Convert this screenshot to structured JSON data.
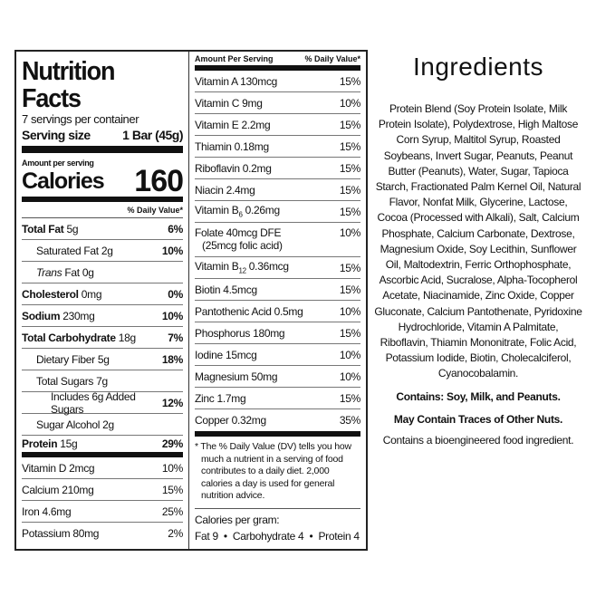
{
  "nutrition": {
    "title": "Nutrition Facts",
    "servings": "7 servings per container",
    "serving_size_label": "Serving size",
    "serving_size_value": "1 Bar (45g)",
    "amount_per_serving": "Amount per serving",
    "calories_label": "Calories",
    "calories_value": "160",
    "dv_header": "% Daily Value*",
    "left_rows": [
      {
        "name": "Total Fat",
        "amount": "5g",
        "dv": "6%",
        "bold": true,
        "indent": 0
      },
      {
        "name": "Saturated Fat 2g",
        "amount": "",
        "dv": "10%",
        "indent": 1
      },
      {
        "name": "Trans",
        "amount": "Fat 0g",
        "dv": "",
        "indent": 1,
        "italic": true
      },
      {
        "name": "Cholesterol",
        "amount": "0mg",
        "dv": "0%",
        "bold": true,
        "indent": 0
      },
      {
        "name": "Sodium",
        "amount": "230mg",
        "dv": "10%",
        "bold": true,
        "indent": 0
      },
      {
        "name": "Total Carbohydrate",
        "amount": "18g",
        "dv": "7%",
        "bold": true,
        "indent": 0
      },
      {
        "name": "Dietary Fiber 5g",
        "amount": "",
        "dv": "18%",
        "indent": 1
      },
      {
        "name": "Total Sugars 7g",
        "amount": "",
        "dv": "",
        "indent": 1
      },
      {
        "name": "Includes 6g Added Sugars",
        "amount": "",
        "dv": "12%",
        "indent": 2
      },
      {
        "name": "Sugar Alcohol 2g",
        "amount": "",
        "dv": "",
        "indent": 1
      },
      {
        "name": "Protein",
        "amount": "15g",
        "dv": "29%",
        "bold": true,
        "indent": 0,
        "thick": true
      },
      {
        "name": "Vitamin D 2mcg",
        "amount": "",
        "dv": "10%",
        "indent": 0,
        "plain": true
      },
      {
        "name": "Calcium 210mg",
        "amount": "",
        "dv": "15%",
        "indent": 0,
        "plain": true
      },
      {
        "name": "Iron 4.6mg",
        "amount": "",
        "dv": "25%",
        "indent": 0,
        "plain": true
      },
      {
        "name": "Potassium 80mg",
        "amount": "",
        "dv": "2%",
        "indent": 0,
        "plain": true
      }
    ],
    "right_header_left": "Amount Per Serving",
    "right_header_right": "% Daily Value*",
    "right_rows": [
      {
        "name": "Vitamin A 130mcg",
        "dv": "15%"
      },
      {
        "name": "Vitamin C 9mg",
        "dv": "10%"
      },
      {
        "name": "Vitamin E 2.2mg",
        "dv": "15%"
      },
      {
        "name": "Thiamin 0.18mg",
        "dv": "15%"
      },
      {
        "name": "Riboflavin 0.2mg",
        "dv": "15%"
      },
      {
        "name": "Niacin 2.4mg",
        "dv": "15%"
      },
      {
        "name": "Vitamin B",
        "sub": "6",
        "amount": " 0.26mg",
        "dv": "15%"
      },
      {
        "name": "Folate 40mcg DFE",
        "line2": "(25mcg folic acid)",
        "dv": "10%"
      },
      {
        "name": "Vitamin B",
        "sub": "12",
        "amount": " 0.36mcg",
        "dv": "15%"
      },
      {
        "name": "Biotin 4.5mcg",
        "dv": "15%"
      },
      {
        "name": "Pantothenic Acid 0.5mg",
        "dv": "10%"
      },
      {
        "name": "Phosphorus 180mg",
        "dv": "15%"
      },
      {
        "name": "Iodine 15mcg",
        "dv": "10%"
      },
      {
        "name": "Magnesium 50mg",
        "dv": "10%"
      },
      {
        "name": "Zinc 1.7mg",
        "dv": "15%"
      },
      {
        "name": "Copper 0.32mg",
        "dv": "35%"
      }
    ],
    "footnote": "* The % Daily Value (DV) tells you how much a nutrient in a serving of food contributes to a daily diet. 2,000 calories a day is used for general nutrition advice.",
    "calories_per_gram_label": "Calories per gram:",
    "calories_per_gram": "Fat 9  •  Carbohydrate 4  •  Protein 4"
  },
  "ingredients": {
    "title": "Ingredients",
    "text": "Protein Blend (Soy Protein Isolate, Milk Protein Isolate), Polydextrose, High Maltose Corn Syrup, Maltitol Syrup, Roasted Soybeans, Invert Sugar, Peanuts, Peanut Butter (Peanuts), Water, Sugar, Tapioca Starch, Fractionated Palm Kernel Oil, Natural Flavor, Nonfat Milk, Glycerine, Lactose, Cocoa (Processed with Alkali), Salt, Calcium Phosphate, Calcium Carbonate, Dextrose, Magnesium Oxide, Soy Lecithin, Sunflower Oil, Maltodextrin, Ferric Orthophosphate, Ascorbic Acid, Sucralose, Alpha-Tocopherol Acetate, Niacinamide, Zinc Oxide, Copper Gluconate, Calcium Pantothenate, Pyridoxine Hydrochloride, Vitamin A Palmitate, Riboflavin, Thiamin Mononitrate, Folic Acid, Potassium Iodide, Biotin, Cholecalciferol, Cyanocobalamin.",
    "contains": "Contains: Soy, Milk, and Peanuts.",
    "may_contain": "May Contain Traces of Other Nuts.",
    "bioengineered": "Contains a bioengineered food ingredient."
  }
}
